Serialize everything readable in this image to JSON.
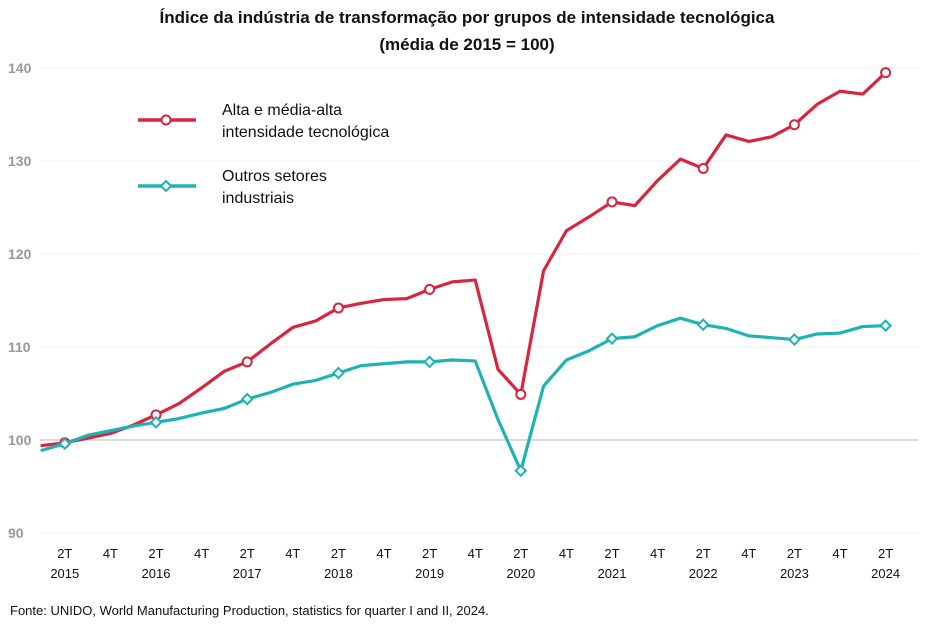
{
  "title_line1": "Índice da indústria de transformação por grupos de intensidade tecnológica",
  "title_line2": "(média de 2015 = 100)",
  "source": "Fonte: UNIDO, World Manufacturing Production, statistics for quarter I and II, 2024.",
  "chart_data": {
    "type": "line",
    "ylim": [
      90,
      140
    ],
    "yticks": [
      90,
      100,
      110,
      120,
      130,
      140
    ],
    "x": [
      "2015 T1",
      "2015 T2",
      "2015 T3",
      "2015 T4",
      "2016 T1",
      "2016 T2",
      "2016 T3",
      "2016 T4",
      "2017 T1",
      "2017 T2",
      "2017 T3",
      "2017 T4",
      "2018 T1",
      "2018 T2",
      "2018 T3",
      "2018 T4",
      "2019 T1",
      "2019 T2",
      "2019 T3",
      "2019 T4",
      "2020 T1",
      "2020 T2",
      "2020 T3",
      "2020 T4",
      "2021 T1",
      "2021 T2",
      "2021 T3",
      "2021 T4",
      "2022 T1",
      "2022 T2",
      "2022 T3",
      "2022 T4",
      "2023 T1",
      "2023 T2",
      "2023 T3",
      "2023 T4",
      "2024 T1",
      "2024 T2"
    ],
    "x_tick_labels": [
      {
        "q": "2T",
        "year": "2015"
      },
      {
        "q": "4T",
        "year": ""
      },
      {
        "q": "2T",
        "year": "2016"
      },
      {
        "q": "4T",
        "year": ""
      },
      {
        "q": "2T",
        "year": "2017"
      },
      {
        "q": "4T",
        "year": ""
      },
      {
        "q": "2T",
        "year": "2018"
      },
      {
        "q": "4T",
        "year": ""
      },
      {
        "q": "2T",
        "year": "2019"
      },
      {
        "q": "4T",
        "year": ""
      },
      {
        "q": "2T",
        "year": "2020"
      },
      {
        "q": "4T",
        "year": ""
      },
      {
        "q": "2T",
        "year": "2021"
      },
      {
        "q": "4T",
        "year": ""
      },
      {
        "q": "2T",
        "year": "2022"
      },
      {
        "q": "4T",
        "year": ""
      },
      {
        "q": "2T",
        "year": "2023"
      },
      {
        "q": "4T",
        "year": ""
      },
      {
        "q": "2T",
        "year": "2024"
      }
    ],
    "series": [
      {
        "name_lines": [
          "Alta e média-alta",
          "intensidade tecnológica"
        ],
        "color": "#d7263d",
        "marker": "circle",
        "values": [
          99.4,
          99.7,
          100.2,
          100.7,
          101.6,
          102.7,
          103.9,
          105.6,
          107.4,
          108.4,
          110.3,
          112.1,
          112.8,
          114.2,
          114.7,
          115.1,
          115.2,
          116.2,
          117.0,
          117.2,
          107.6,
          104.9,
          118.2,
          122.5,
          124.0,
          125.6,
          125.2,
          127.9,
          130.2,
          129.2,
          132.8,
          132.1,
          132.6,
          133.9,
          136.1,
          137.5,
          137.2,
          139.5
        ]
      },
      {
        "name_lines": [
          "Outros setores",
          "industriais"
        ],
        "color": "#1fb3b3",
        "marker": "diamond",
        "values": [
          98.9,
          99.6,
          100.5,
          101.0,
          101.5,
          101.9,
          102.3,
          102.9,
          103.4,
          104.4,
          105.1,
          106.0,
          106.4,
          107.2,
          108.0,
          108.2,
          108.4,
          108.4,
          108.6,
          108.5,
          102.2,
          96.7,
          105.8,
          108.6,
          109.6,
          110.9,
          111.1,
          112.3,
          113.1,
          112.4,
          112.0,
          111.2,
          111.0,
          110.8,
          111.4,
          111.5,
          112.2,
          112.3
        ]
      }
    ],
    "legend_placement": "top-left inside plot",
    "grid": "horizontal at 100 only"
  }
}
